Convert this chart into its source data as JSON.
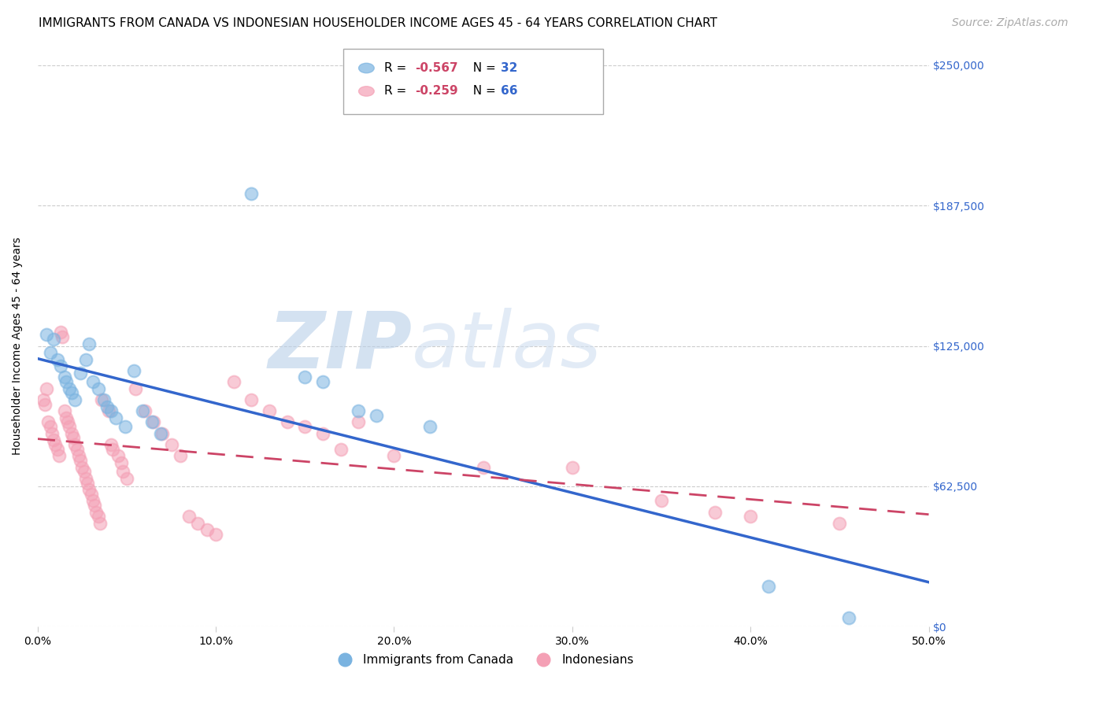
{
  "title": "IMMIGRANTS FROM CANADA VS INDONESIAN HOUSEHOLDER INCOME AGES 45 - 64 YEARS CORRELATION CHART",
  "source": "Source: ZipAtlas.com",
  "ylabel": "Householder Income Ages 45 - 64 years",
  "background_color": "#ffffff",
  "watermark_zip": "ZIP",
  "watermark_atlas": "atlas",
  "ytick_labels": [
    "$0",
    "$62,500",
    "$125,000",
    "$187,500",
    "$250,000"
  ],
  "ytick_values": [
    0,
    62500,
    125000,
    187500,
    250000
  ],
  "xtick_labels": [
    "0.0%",
    "10.0%",
    "20.0%",
    "30.0%",
    "40.0%",
    "50.0%"
  ],
  "xtick_values": [
    0.0,
    0.1,
    0.2,
    0.3,
    0.4,
    0.5
  ],
  "xlim": [
    0.0,
    0.5
  ],
  "ylim": [
    0,
    250000
  ],
  "canada_R": "-0.567",
  "canada_N": "32",
  "indonesia_R": "-0.259",
  "indonesia_N": "66",
  "canada_color": "#7ab3e0",
  "indonesia_color": "#f4a0b5",
  "canada_line_color": "#3366cc",
  "indonesia_line_color": "#cc4466",
  "canada_points": [
    [
      0.005,
      130000
    ],
    [
      0.007,
      122000
    ],
    [
      0.009,
      128000
    ],
    [
      0.011,
      119000
    ],
    [
      0.013,
      116000
    ],
    [
      0.015,
      111000
    ],
    [
      0.016,
      109000
    ],
    [
      0.018,
      106000
    ],
    [
      0.019,
      104000
    ],
    [
      0.021,
      101000
    ],
    [
      0.024,
      113000
    ],
    [
      0.027,
      119000
    ],
    [
      0.029,
      126000
    ],
    [
      0.031,
      109000
    ],
    [
      0.034,
      106000
    ],
    [
      0.037,
      101000
    ],
    [
      0.039,
      98000
    ],
    [
      0.041,
      96000
    ],
    [
      0.044,
      93000
    ],
    [
      0.049,
      89000
    ],
    [
      0.054,
      114000
    ],
    [
      0.059,
      96000
    ],
    [
      0.064,
      91000
    ],
    [
      0.069,
      86000
    ],
    [
      0.12,
      193000
    ],
    [
      0.15,
      111000
    ],
    [
      0.16,
      109000
    ],
    [
      0.18,
      96000
    ],
    [
      0.19,
      94000
    ],
    [
      0.22,
      89000
    ],
    [
      0.41,
      18000
    ],
    [
      0.455,
      4000
    ]
  ],
  "indonesia_points": [
    [
      0.003,
      101000
    ],
    [
      0.004,
      99000
    ],
    [
      0.005,
      106000
    ],
    [
      0.006,
      91000
    ],
    [
      0.007,
      89000
    ],
    [
      0.008,
      86000
    ],
    [
      0.009,
      83000
    ],
    [
      0.01,
      81000
    ],
    [
      0.011,
      79000
    ],
    [
      0.012,
      76000
    ],
    [
      0.013,
      131000
    ],
    [
      0.014,
      129000
    ],
    [
      0.015,
      96000
    ],
    [
      0.016,
      93000
    ],
    [
      0.017,
      91000
    ],
    [
      0.018,
      89000
    ],
    [
      0.019,
      86000
    ],
    [
      0.02,
      84000
    ],
    [
      0.021,
      81000
    ],
    [
      0.022,
      79000
    ],
    [
      0.023,
      76000
    ],
    [
      0.024,
      74000
    ],
    [
      0.025,
      71000
    ],
    [
      0.026,
      69000
    ],
    [
      0.027,
      66000
    ],
    [
      0.028,
      64000
    ],
    [
      0.029,
      61000
    ],
    [
      0.03,
      59000
    ],
    [
      0.031,
      56000
    ],
    [
      0.032,
      54000
    ],
    [
      0.033,
      51000
    ],
    [
      0.034,
      49000
    ],
    [
      0.035,
      46000
    ],
    [
      0.036,
      101000
    ],
    [
      0.04,
      96000
    ],
    [
      0.041,
      81000
    ],
    [
      0.042,
      79000
    ],
    [
      0.045,
      76000
    ],
    [
      0.047,
      73000
    ],
    [
      0.048,
      69000
    ],
    [
      0.05,
      66000
    ],
    [
      0.055,
      106000
    ],
    [
      0.06,
      96000
    ],
    [
      0.065,
      91000
    ],
    [
      0.07,
      86000
    ],
    [
      0.075,
      81000
    ],
    [
      0.08,
      76000
    ],
    [
      0.085,
      49000
    ],
    [
      0.09,
      46000
    ],
    [
      0.095,
      43000
    ],
    [
      0.1,
      41000
    ],
    [
      0.11,
      109000
    ],
    [
      0.12,
      101000
    ],
    [
      0.13,
      96000
    ],
    [
      0.14,
      91000
    ],
    [
      0.15,
      89000
    ],
    [
      0.16,
      86000
    ],
    [
      0.17,
      79000
    ],
    [
      0.18,
      91000
    ],
    [
      0.2,
      76000
    ],
    [
      0.25,
      71000
    ],
    [
      0.3,
      71000
    ],
    [
      0.35,
      56000
    ],
    [
      0.38,
      51000
    ],
    [
      0.4,
      49000
    ],
    [
      0.45,
      46000
    ]
  ],
  "title_fontsize": 11,
  "source_fontsize": 10,
  "axis_label_fontsize": 10,
  "tick_label_fontsize": 10,
  "legend_fontsize": 11
}
